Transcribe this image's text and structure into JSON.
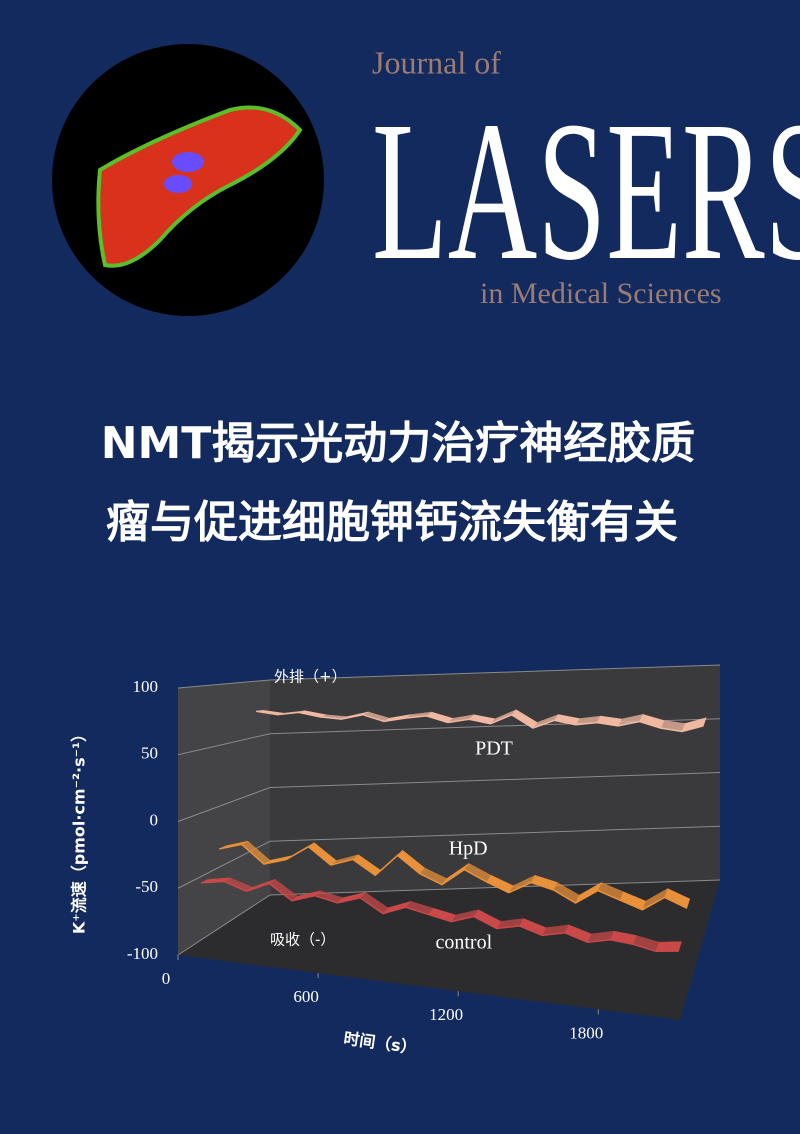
{
  "header": {
    "prefix": "Journal of",
    "name": "LASERS",
    "suffix": "in Medical Sciences"
  },
  "headline": [
    "NMT揭示光动力治疗神经胶质",
    "瘤与促进细胞钾钙流失衡有关"
  ],
  "chart_data": {
    "type": "ribbon3d",
    "ylabel": "K⁺流速（pmol·cm⁻²·s⁻¹）",
    "xlabel": "时间（s）",
    "annotations": [
      "外排（+）",
      "吸收（-）"
    ],
    "xlim": [
      0,
      2150
    ],
    "xticks": [
      0,
      600,
      1200,
      1800
    ],
    "ylim": [
      -100,
      100
    ],
    "yticks": [
      -100,
      -50,
      0,
      50,
      100
    ],
    "x": [
      0,
      100,
      200,
      300,
      400,
      500,
      600,
      700,
      800,
      900,
      1000,
      1100,
      1200,
      1300,
      1400,
      1500,
      1600,
      1700,
      1800,
      1900,
      2000,
      2100
    ],
    "series": [
      {
        "name": "PDT",
        "color": "#f0b8a0",
        "values": [
          73,
          70,
          72,
          68,
          66,
          70,
          64,
          67,
          69,
          63,
          66,
          62,
          70,
          58,
          65,
          61,
          63,
          60,
          64,
          58,
          55,
          60
        ]
      },
      {
        "name": "HpD",
        "color": "#e8903a",
        "values": [
          -35,
          -30,
          -45,
          -40,
          -28,
          -42,
          -36,
          -48,
          -30,
          -44,
          -52,
          -38,
          -47,
          -55,
          -45,
          -50,
          -60,
          -48,
          -55,
          -62,
          -50,
          -58
        ]
      },
      {
        "name": "control",
        "color": "#c94848",
        "values": [
          -55,
          -52,
          -58,
          -50,
          -62,
          -56,
          -60,
          -54,
          -65,
          -58,
          -62,
          -66,
          -60,
          -68,
          -64,
          -70,
          -66,
          -72,
          -68,
          -70,
          -74,
          -72
        ]
      }
    ]
  }
}
